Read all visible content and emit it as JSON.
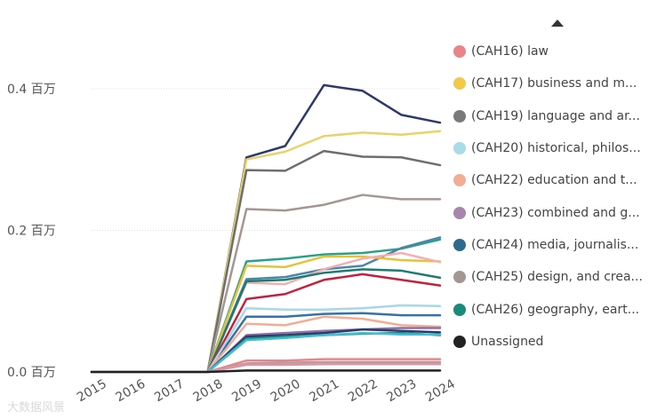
{
  "chart_data": {
    "type": "line",
    "y_unit": "百万",
    "x": [
      "2015",
      "2016",
      "2017",
      "2018",
      "2019",
      "2020",
      "2021",
      "2022",
      "2023",
      "2024"
    ],
    "ylim": [
      0,
      0.45
    ],
    "yticks": [
      {
        "value": 0.0,
        "label": "0.0 百万"
      },
      {
        "value": 0.2,
        "label": "0.2 百万"
      },
      {
        "value": 0.4,
        "label": "0.4 百万"
      }
    ],
    "grid": true,
    "legend_position": "right",
    "legend": [
      {
        "label": "(CAH16) law",
        "color": "#e8848a"
      },
      {
        "label": "(CAH17) business and m...",
        "color": "#f2c94c"
      },
      {
        "label": "(CAH19) language and ar...",
        "color": "#7a7a7a"
      },
      {
        "label": "(CAH20) historical, philos...",
        "color": "#a8dce8"
      },
      {
        "label": "(CAH22) education and t...",
        "color": "#f2ad95"
      },
      {
        "label": "(CAH23) combined and g...",
        "color": "#a786ad"
      },
      {
        "label": "(CAH24) media, journalis...",
        "color": "#2e6a8c"
      },
      {
        "label": "(CAH25) design, and crea...",
        "color": "#a39793"
      },
      {
        "label": "(CAH26) geography, eart...",
        "color": "#1a8a7a"
      },
      {
        "label": "Unassigned",
        "color": "#222222"
      }
    ],
    "series": [
      {
        "name": "top-navy",
        "color": "#2b3a6b",
        "values": [
          0,
          0,
          0,
          0,
          0.303,
          0.319,
          0.405,
          0.397,
          0.363,
          0.352
        ]
      },
      {
        "name": "business-yellow",
        "color": "#e8d36a",
        "values": [
          0,
          0,
          0,
          0,
          0.3,
          0.311,
          0.333,
          0.338,
          0.335,
          0.34
        ]
      },
      {
        "name": "language-gray",
        "color": "#6e6e6e",
        "values": [
          0,
          0,
          0,
          0,
          0.285,
          0.284,
          0.312,
          0.304,
          0.303,
          0.292
        ]
      },
      {
        "name": "design-gray",
        "color": "#a39793",
        "values": [
          0,
          0,
          0,
          0,
          0.23,
          0.228,
          0.236,
          0.25,
          0.244,
          0.244
        ]
      },
      {
        "name": "teal-1",
        "color": "#2aa08a",
        "values": [
          0,
          0,
          0,
          0,
          0.156,
          0.16,
          0.166,
          0.168,
          0.174,
          0.187
        ]
      },
      {
        "name": "steel-blue",
        "color": "#4a86a8",
        "values": [
          0,
          0,
          0,
          0,
          0.131,
          0.134,
          0.145,
          0.15,
          0.175,
          0.19
        ]
      },
      {
        "name": "yellow-2",
        "color": "#e6c23a",
        "values": [
          0,
          0,
          0,
          0,
          0.15,
          0.148,
          0.163,
          0.163,
          0.158,
          0.156
        ]
      },
      {
        "name": "pink-salmon",
        "color": "#f2b0b0",
        "values": [
          0,
          0,
          0,
          0,
          0.126,
          0.124,
          0.145,
          0.16,
          0.168,
          0.155
        ]
      },
      {
        "name": "dark-teal",
        "color": "#1f7a72",
        "values": [
          0,
          0,
          0,
          0,
          0.128,
          0.13,
          0.14,
          0.145,
          0.143,
          0.133
        ]
      },
      {
        "name": "law-red",
        "color": "#c4213f",
        "values": [
          0,
          0,
          0,
          0,
          0.103,
          0.11,
          0.13,
          0.138,
          0.13,
          0.122
        ]
      },
      {
        "name": "media-blue",
        "color": "#3572a8",
        "values": [
          0,
          0,
          0,
          0,
          0.078,
          0.078,
          0.082,
          0.083,
          0.08,
          0.08
        ]
      },
      {
        "name": "historical-lightblue",
        "color": "#a8d8e8",
        "values": [
          0,
          0,
          0,
          0,
          0.09,
          0.088,
          0.088,
          0.09,
          0.094,
          0.093
        ]
      },
      {
        "name": "education-peach",
        "color": "#f2ad95",
        "values": [
          0,
          0,
          0,
          0,
          0.068,
          0.066,
          0.078,
          0.075,
          0.066,
          0.064
        ]
      },
      {
        "name": "combined-purple",
        "color": "#8e6fa8",
        "values": [
          0,
          0,
          0,
          0,
          0.052,
          0.055,
          0.058,
          0.06,
          0.062,
          0.062
        ]
      },
      {
        "name": "navy-2",
        "color": "#2b3a6b",
        "values": [
          0,
          0,
          0,
          0,
          0.05,
          0.052,
          0.055,
          0.06,
          0.058,
          0.056
        ]
      },
      {
        "name": "geography-teal",
        "color": "#1a8a7a",
        "values": [
          0,
          0,
          0,
          0,
          0.047,
          0.05,
          0.052,
          0.054,
          0.055,
          0.052
        ]
      },
      {
        "name": "cyan",
        "color": "#45bcd0",
        "values": [
          0,
          0,
          0,
          0,
          0.045,
          0.048,
          0.052,
          0.055,
          0.053,
          0.053
        ]
      },
      {
        "name": "law-pink",
        "color": "#e8848a",
        "values": [
          0,
          0,
          0,
          0,
          0.016,
          0.016,
          0.018,
          0.018,
          0.018,
          0.018
        ]
      },
      {
        "name": "design-mauve",
        "color": "#b89aa0",
        "values": [
          0,
          0,
          0,
          0,
          0.012,
          0.013,
          0.014,
          0.014,
          0.014,
          0.014
        ]
      },
      {
        "name": "small-rose",
        "color": "#d49aa8",
        "values": [
          0,
          0,
          0,
          0,
          0.01,
          0.01,
          0.011,
          0.011,
          0.011,
          0.011
        ]
      },
      {
        "name": "unassigned-black",
        "color": "#222222",
        "values": [
          0,
          0,
          0,
          0,
          0.002,
          0.002,
          0.002,
          0.002,
          0.002,
          0.002
        ]
      }
    ]
  },
  "watermark": "大数据风景"
}
